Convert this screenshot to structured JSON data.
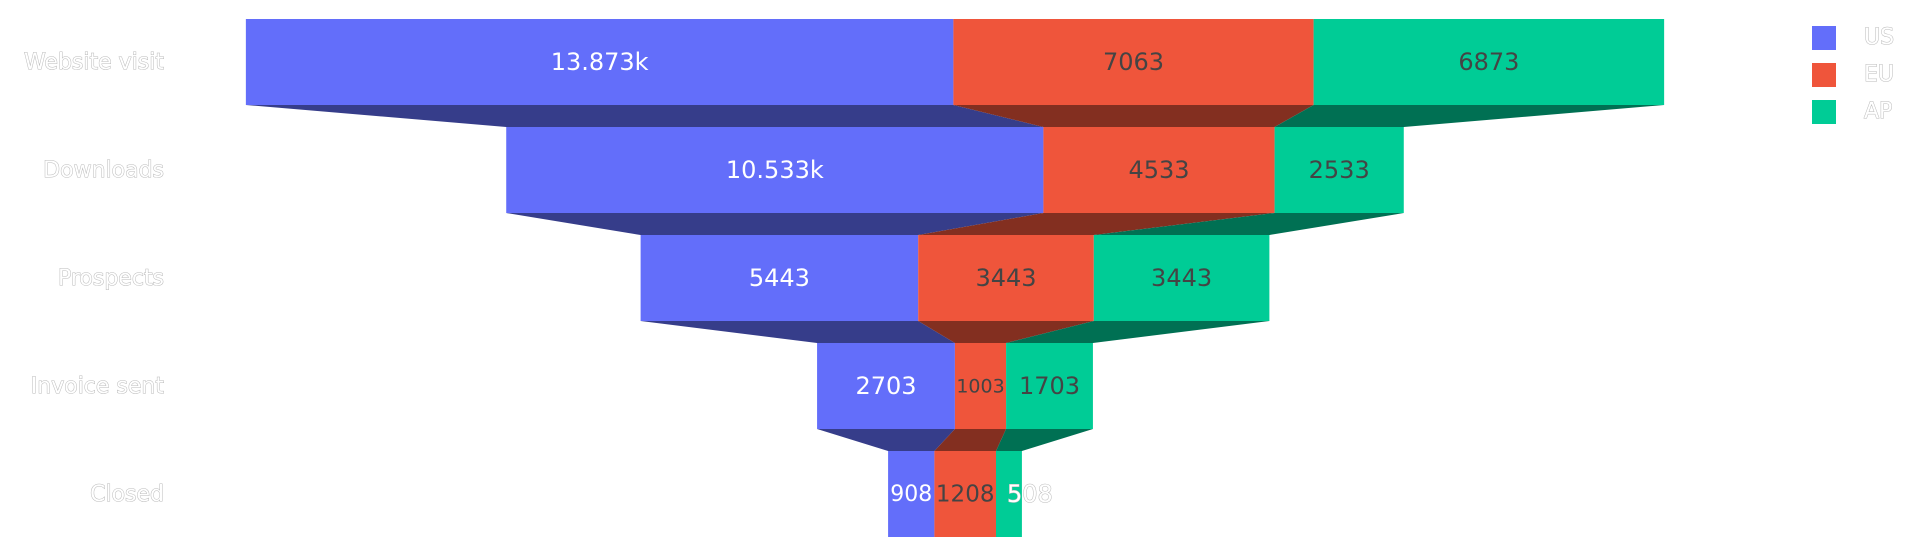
{
  "chart_data": {
    "type": "funnel",
    "stages": [
      "Website visit",
      "Downloads",
      "Prospects",
      "Invoice sent",
      "Closed"
    ],
    "series": [
      {
        "name": "US",
        "color": "#636efa",
        "values": [
          13873,
          10533,
          5443,
          2703,
          908
        ],
        "labels": [
          "13.873k",
          "10.533k",
          "5443",
          "2703",
          "908"
        ]
      },
      {
        "name": "EU",
        "color": "#ef553b",
        "values": [
          7063,
          4533,
          3443,
          1003,
          1208
        ],
        "labels": [
          "7063",
          "4533",
          "3443",
          "1003",
          "1208"
        ]
      },
      {
        "name": "AP",
        "color": "#00cc96",
        "values": [
          6873,
          2533,
          3443,
          1703,
          508
        ],
        "labels": [
          "6873",
          "2533",
          "3443",
          "1703",
          "508"
        ]
      }
    ],
    "legend_position": "top-right"
  }
}
